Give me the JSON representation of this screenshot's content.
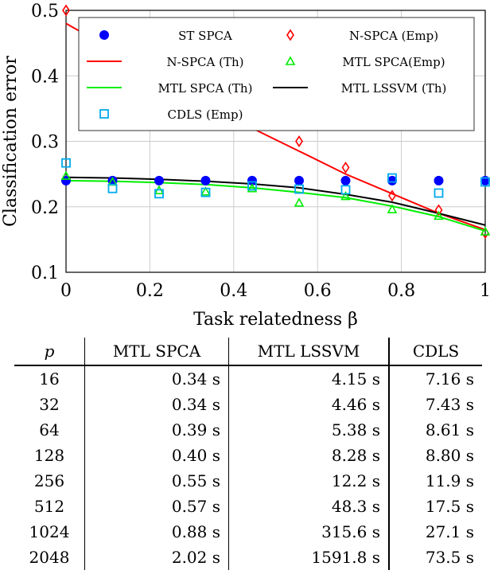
{
  "chart_data": {
    "type": "line",
    "xlabel": "Task relatedness β",
    "ylabel": "Classification error",
    "xlim": [
      0,
      1
    ],
    "ylim": [
      0.1,
      0.5
    ],
    "xticks": [
      "0",
      "0.2",
      "0.4",
      "0.6",
      "0.8",
      "1"
    ],
    "yticks": [
      "0.1",
      "0.2",
      "0.3",
      "0.4",
      "0.5"
    ],
    "grid": true,
    "legend_position": "top",
    "x": [
      0,
      0.111,
      0.222,
      0.333,
      0.444,
      0.556,
      0.667,
      0.778,
      0.889,
      1
    ],
    "series": [
      {
        "name": "ST SPCA",
        "kind": "marker",
        "marker": "circle",
        "color": "#0000ff",
        "values": [
          0.24,
          0.24,
          0.24,
          0.24,
          0.24,
          0.24,
          0.24,
          0.24,
          0.24,
          0.24
        ]
      },
      {
        "name": "N-SPCA (Emp)",
        "kind": "marker",
        "marker": "diamond",
        "color": "#ff0000",
        "values": [
          0.5,
          0.465,
          0.41,
          0.37,
          0.34,
          0.3,
          0.26,
          0.217,
          0.195,
          0.16
        ]
      },
      {
        "name": "N-SPCA (Th)",
        "kind": "line",
        "color": "#ff0000",
        "values": [
          0.48,
          0.44,
          0.4,
          0.36,
          0.32,
          0.285,
          0.25,
          0.22,
          0.19,
          0.165
        ]
      },
      {
        "name": "MTL SPCA(Emp)",
        "kind": "marker",
        "marker": "triangle",
        "color": "#00ee00",
        "values": [
          0.247,
          0.238,
          0.225,
          0.223,
          0.228,
          0.206,
          0.216,
          0.196,
          0.186,
          0.162
        ]
      },
      {
        "name": "MTL SPCA (Th)",
        "kind": "line",
        "color": "#00ee00",
        "values": [
          0.24,
          0.239,
          0.237,
          0.234,
          0.229,
          0.222,
          0.214,
          0.201,
          0.185,
          0.163
        ]
      },
      {
        "name": "MTL LSSVM (Th)",
        "kind": "line",
        "color": "#000000",
        "values": [
          0.245,
          0.244,
          0.242,
          0.239,
          0.235,
          0.229,
          0.219,
          0.207,
          0.19,
          0.172
        ]
      },
      {
        "name": "CDLS (Emp)",
        "kind": "marker",
        "marker": "square",
        "color": "#00aaee",
        "values": [
          0.267,
          0.228,
          0.22,
          0.222,
          0.232,
          0.227,
          0.226,
          0.244,
          0.221,
          0.238
        ]
      }
    ]
  },
  "table": {
    "headers": [
      "p",
      "MTL SPCA",
      "MTL LSSVM",
      "CDLS"
    ],
    "rows": [
      [
        "16",
        "0.34 s",
        "4.15 s",
        "7.16 s"
      ],
      [
        "32",
        "0.34 s",
        "4.46 s",
        "7.43 s"
      ],
      [
        "64",
        "0.39 s",
        "5.38 s",
        "8.61 s"
      ],
      [
        "128",
        "0.40 s",
        "8.28 s",
        "8.80 s"
      ],
      [
        "256",
        "0.55 s",
        "12.2 s",
        "11.9 s"
      ],
      [
        "512",
        "0.57 s",
        "48.3 s",
        "17.5 s"
      ],
      [
        "1024",
        "0.88 s",
        "315.6 s",
        "27.1 s"
      ],
      [
        "2048",
        "2.02 s",
        "1591.8 s",
        "73.5 s"
      ]
    ]
  }
}
